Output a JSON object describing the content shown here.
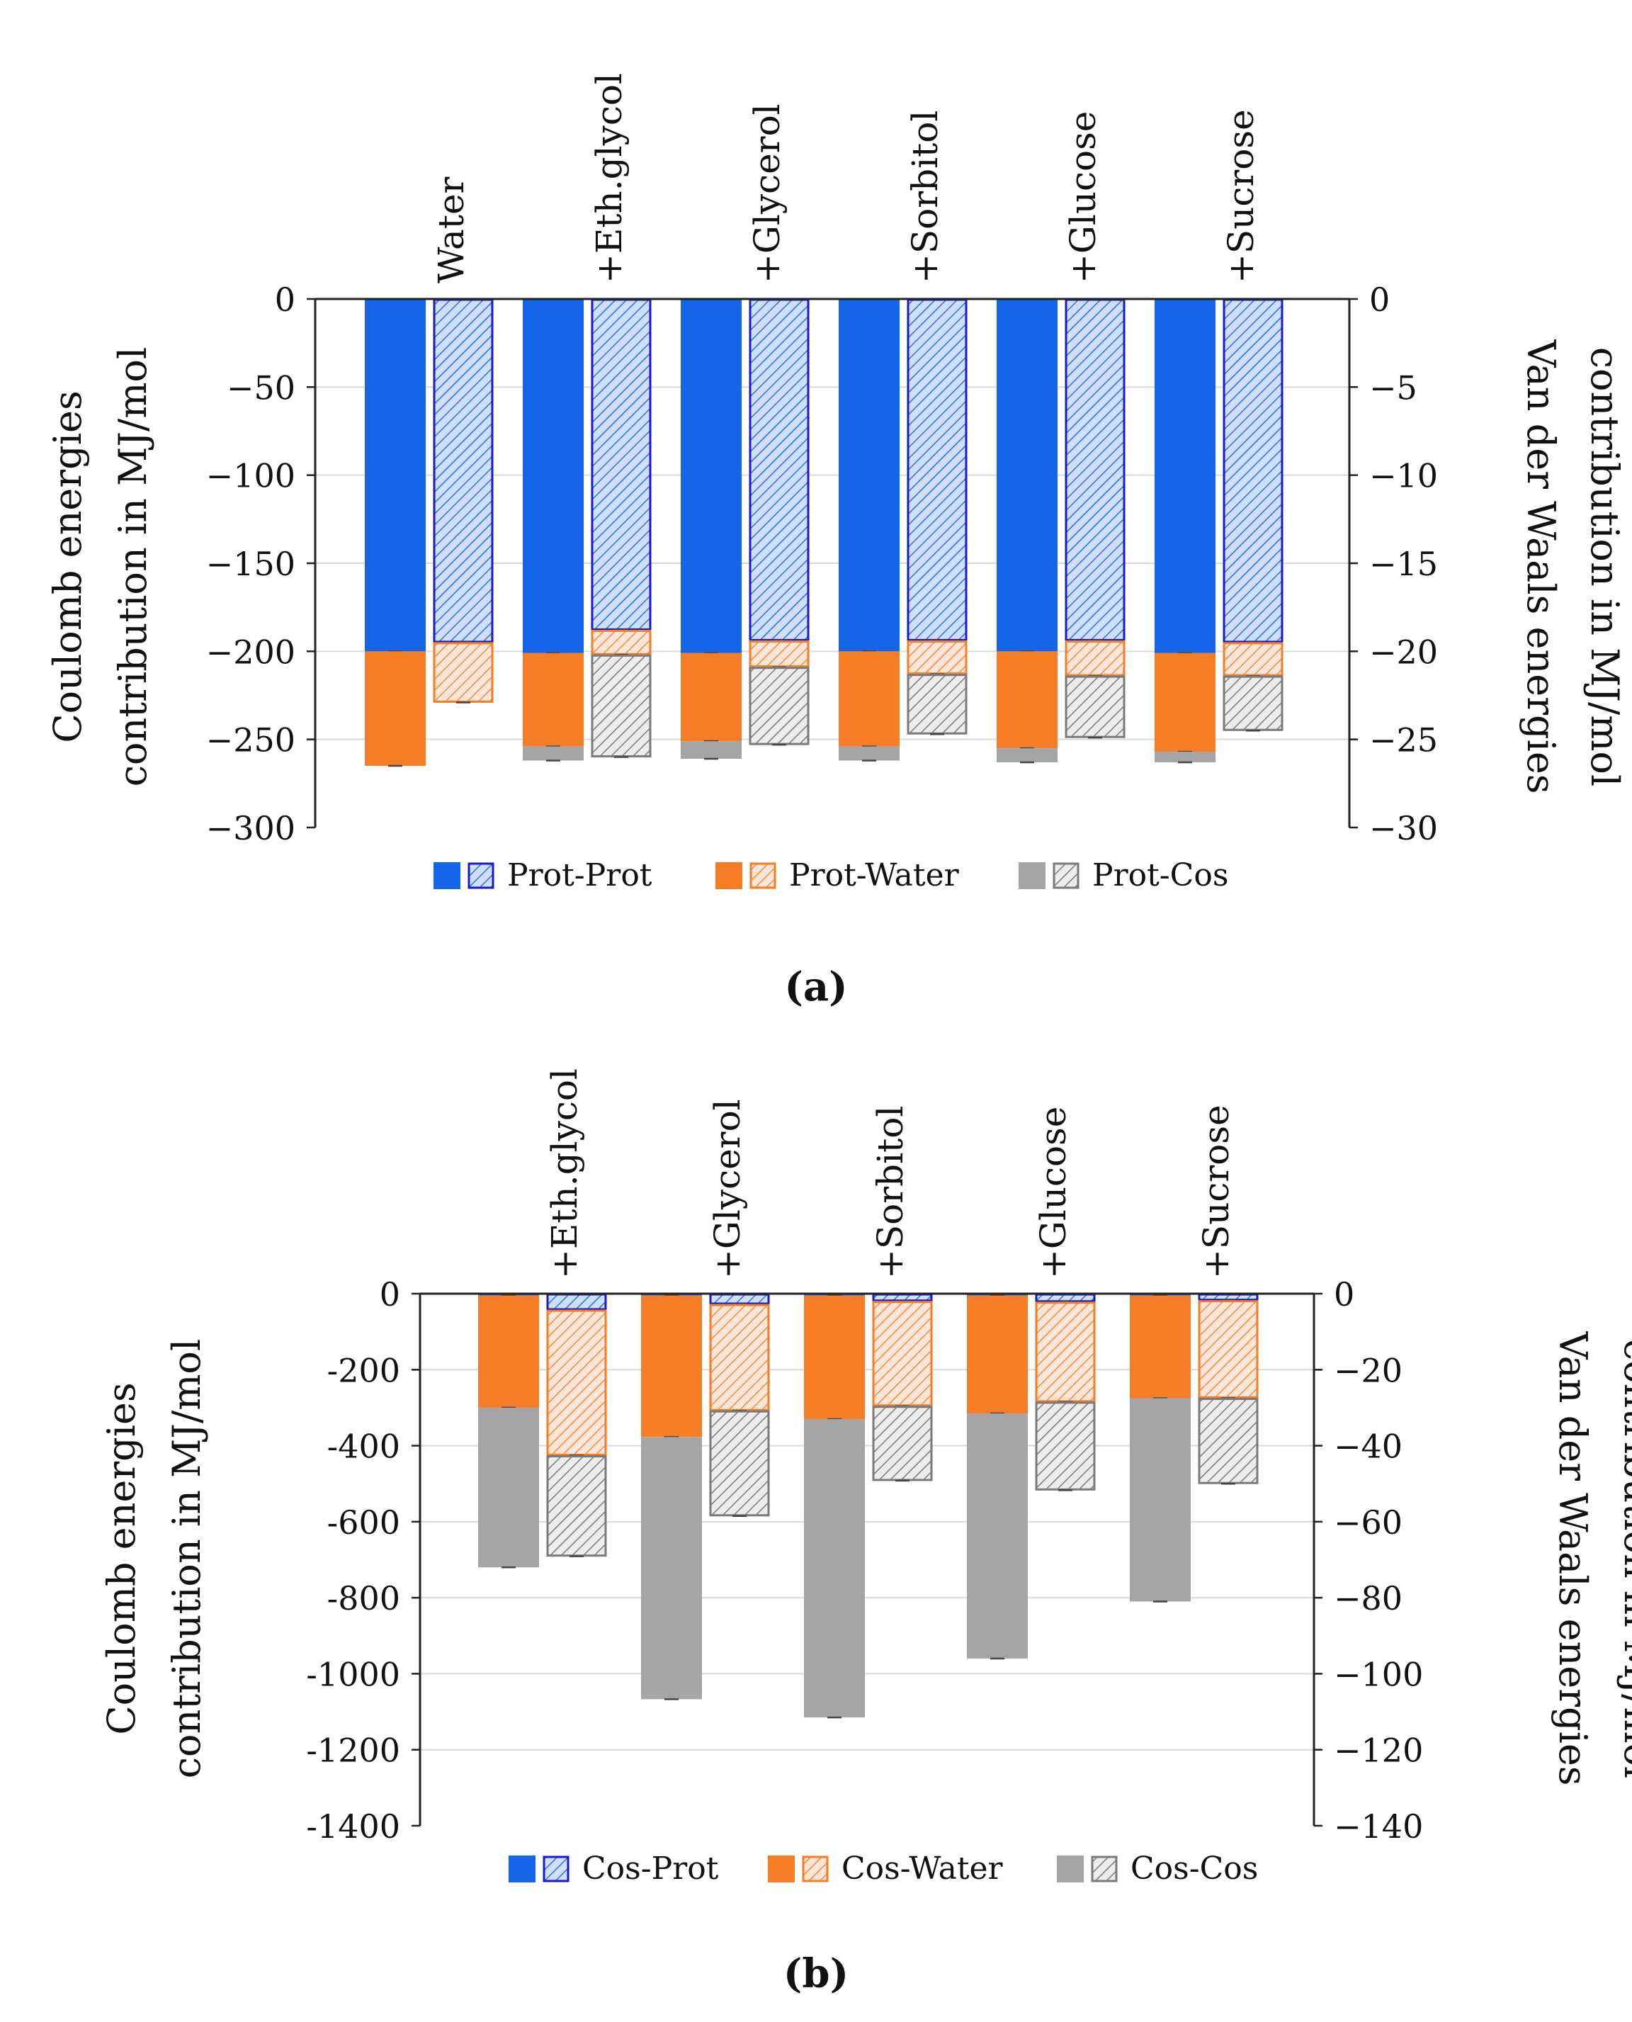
{
  "colors": {
    "prot": "#1565e8",
    "prot_edge": "#1a1acc",
    "water": "#f57d26",
    "cos": "#a5a5a5",
    "cos_edge": "#7a7a7a",
    "grid": "#d9d9d9",
    "axis": "#222222"
  },
  "chart_data": [
    {
      "id": "a",
      "type": "bar",
      "subtype": "stacked-paired",
      "caption": "(a)",
      "categories": [
        "Water",
        "+Eth.glycol",
        "+Glycerol",
        "+Sorbitol",
        "+Glucose",
        "+Sucrose"
      ],
      "ylabel_left": [
        "Coulomb energies",
        "contribution in MJ/mol"
      ],
      "ylabel_right": [
        "Van der Waals energies",
        "contribution in MJ/mol"
      ],
      "ylim_left": [
        -300,
        0
      ],
      "ylim_right": [
        -30,
        0
      ],
      "yticks_left": [
        "0",
        "−50",
        "−100",
        "−150",
        "−200",
        "−250",
        "−300"
      ],
      "yticks_right": [
        "0",
        "−5",
        "−10",
        "−15",
        "−20",
        "−25",
        "−30"
      ],
      "legend": [
        "Prot-Prot",
        "Prot-Water",
        "Prot-Cos"
      ],
      "coulomb": [
        {
          "name": "Prot-Prot",
          "values": [
            -200,
            -201,
            -201,
            -200,
            -200,
            -201
          ]
        },
        {
          "name": "Prot-Water",
          "values": [
            -65,
            -53,
            -50,
            -54,
            -55,
            -56
          ]
        },
        {
          "name": "Prot-Cos",
          "values": [
            0,
            -8,
            -10,
            -8,
            -8,
            -6
          ]
        }
      ],
      "vdw": [
        {
          "name": "Prot-Prot",
          "values": [
            -19.5,
            -18.8,
            -19.4,
            -19.4,
            -19.4,
            -19.5
          ]
        },
        {
          "name": "Prot-Water",
          "values": [
            -3.4,
            -1.4,
            -1.5,
            -1.9,
            -2.0,
            -1.9
          ]
        },
        {
          "name": "Prot-Cos",
          "values": [
            0,
            -5.8,
            -4.4,
            -3.4,
            -3.5,
            -3.1
          ]
        }
      ]
    },
    {
      "id": "b",
      "type": "bar",
      "subtype": "stacked-paired",
      "caption": "(b)",
      "categories": [
        "+Eth.glycol",
        "+Glycerol",
        "+Sorbitol",
        "+Glucose",
        "+Sucrose"
      ],
      "ylabel_left": [
        "Coulomb energies",
        "contribution in MJ/mol"
      ],
      "ylabel_right": [
        "Van der Waals energies",
        "contribution in MJ/mol"
      ],
      "ylim_left": [
        -1400,
        0
      ],
      "ylim_right": [
        -140,
        0
      ],
      "yticks_left": [
        "0",
        "-200",
        "-400",
        "-600",
        "-800",
        "-1000",
        "-1200",
        "-1400"
      ],
      "yticks_right": [
        "0",
        "−20",
        "−40",
        "−60",
        "−80",
        "−100",
        "−120",
        "−140"
      ],
      "legend": [
        "Cos-Prot",
        "Cos-Water",
        "Cos-Cos"
      ],
      "coulomb": [
        {
          "name": "Cos-Prot",
          "values": [
            -5,
            -5,
            -5,
            -5,
            -5
          ]
        },
        {
          "name": "Cos-Water",
          "values": [
            -295,
            -372,
            -325,
            -310,
            -270
          ]
        },
        {
          "name": "Cos-Cos",
          "values": [
            -420,
            -690,
            -785,
            -645,
            -535
          ]
        }
      ],
      "vdw": [
        {
          "name": "Cos-Prot",
          "values": [
            -4.3,
            -2.8,
            -2.0,
            -2.2,
            -1.8
          ]
        },
        {
          "name": "Cos-Water",
          "values": [
            -38.3,
            -28.0,
            -27.6,
            -26.3,
            -25.7
          ]
        },
        {
          "name": "Cos-Cos",
          "values": [
            -26.5,
            -27.7,
            -19.6,
            -23.2,
            -22.5
          ]
        }
      ]
    }
  ]
}
